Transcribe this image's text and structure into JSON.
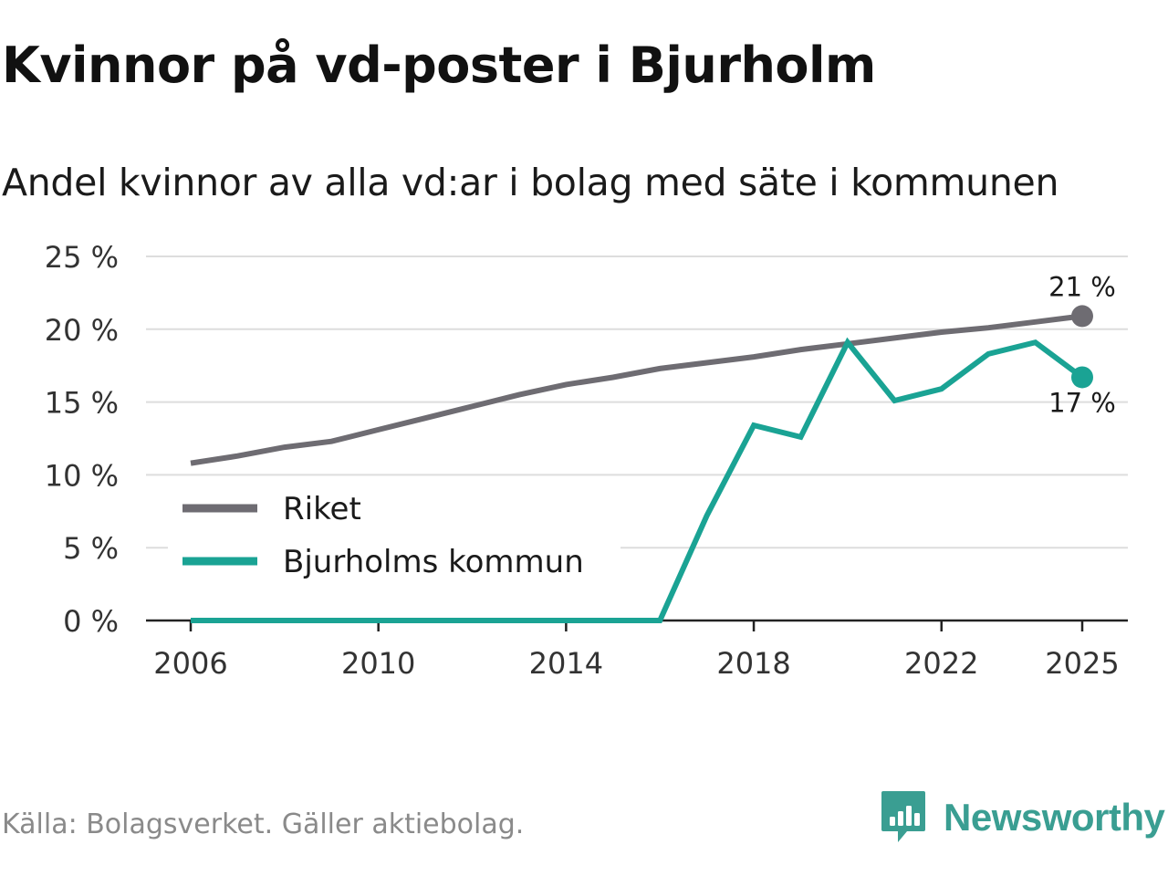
{
  "title": "Kvinnor på vd-poster i Bjurholm",
  "subtitle": "Andel kvinnor av alla vd:ar i bolag med säte i kommunen",
  "source": "Källa: Bolagsverket. Gäller aktiebolag.",
  "brand": {
    "name": "Newsworthy",
    "icon": "newsworthy-logo-icon",
    "color": "#3a9e92"
  },
  "chart_data": {
    "type": "line",
    "x": [
      2006,
      2007,
      2008,
      2009,
      2010,
      2011,
      2012,
      2013,
      2014,
      2015,
      2016,
      2017,
      2018,
      2019,
      2020,
      2021,
      2022,
      2023,
      2024,
      2025
    ],
    "x_ticks": [
      2006,
      2010,
      2014,
      2018,
      2022,
      2025
    ],
    "x_tick_labels": [
      "2006",
      "2010",
      "2014",
      "2018",
      "2022",
      "2025"
    ],
    "y_ticks": [
      0,
      5,
      10,
      15,
      20,
      25
    ],
    "y_tick_labels": [
      "0 %",
      "5 %",
      "10 %",
      "15 %",
      "20 %",
      "25 %"
    ],
    "ylim": [
      0,
      25
    ],
    "grid": true,
    "legend_position": "middle-left",
    "series": [
      {
        "name": "Riket",
        "color": "#6e6c72",
        "values": [
          10.8,
          11.3,
          11.9,
          12.3,
          13.1,
          13.9,
          14.7,
          15.5,
          16.2,
          16.7,
          17.3,
          17.7,
          18.1,
          18.6,
          19.0,
          19.4,
          19.8,
          20.1,
          20.5,
          20.9
        ],
        "end_label": "21 %"
      },
      {
        "name": "Bjurholms kommun",
        "color": "#1aa394",
        "values": [
          0,
          0,
          0,
          0,
          0,
          0,
          0,
          0,
          0,
          0,
          0,
          7.2,
          13.4,
          12.6,
          19.1,
          15.1,
          15.9,
          18.3,
          19.1,
          16.7
        ],
        "end_label": "17 %"
      }
    ]
  }
}
